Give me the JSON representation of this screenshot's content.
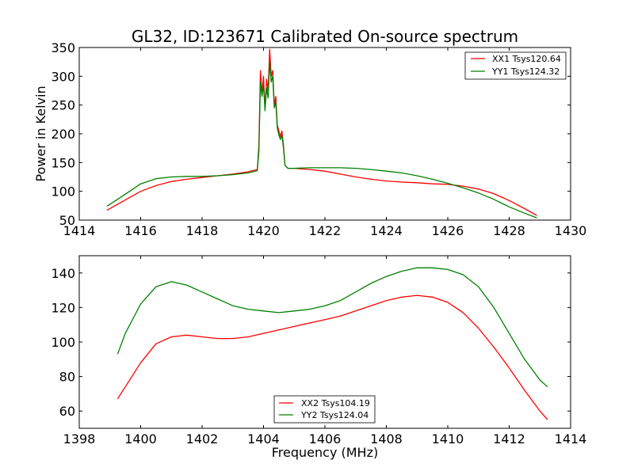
{
  "colors": {
    "red": "#ff0000",
    "green": "#008000",
    "axes": "#000000",
    "background": "#ffffff"
  },
  "chart_data": [
    {
      "type": "line",
      "title": "GL32, ID:123671 Calibrated On-source spectrum",
      "xlabel": "",
      "ylabel": "Power in Kelvin",
      "xlim": [
        1414,
        1430
      ],
      "ylim": [
        50,
        350
      ],
      "xticks": [
        "1414",
        "1416",
        "1418",
        "1420",
        "1422",
        "1424",
        "1426",
        "1428",
        "1430"
      ],
      "yticks": [
        "50",
        "100",
        "150",
        "200",
        "250",
        "300",
        "350"
      ],
      "legend_position": "top-right",
      "series": [
        {
          "name": "XX1 Tsys120.64",
          "color": "#ff0000",
          "x": [
            1414.9,
            1415.5,
            1416,
            1416.5,
            1417,
            1417.5,
            1418,
            1418.5,
            1419,
            1419.5,
            1419.8,
            1419.85,
            1419.9,
            1419.95,
            1420.0,
            1420.05,
            1420.1,
            1420.15,
            1420.2,
            1420.25,
            1420.3,
            1420.35,
            1420.4,
            1420.45,
            1420.5,
            1420.55,
            1420.6,
            1420.65,
            1420.7,
            1420.8,
            1421,
            1421.5,
            1422,
            1422.5,
            1423,
            1423.5,
            1424,
            1424.5,
            1425,
            1425.5,
            1426,
            1426.5,
            1427,
            1427.5,
            1428,
            1428.5,
            1428.9
          ],
          "values": [
            67,
            85,
            100,
            110,
            117,
            121,
            124,
            127,
            130,
            134,
            138,
            180,
            310,
            270,
            300,
            245,
            295,
            275,
            347,
            300,
            310,
            250,
            265,
            215,
            205,
            195,
            205,
            180,
            145,
            140,
            140,
            138,
            135,
            130,
            125,
            121,
            118,
            116,
            115,
            113,
            112,
            109,
            104,
            96,
            84,
            70,
            58
          ]
        },
        {
          "name": "YY1 Tsys124.32",
          "color": "#008000",
          "x": [
            1414.9,
            1415.5,
            1416,
            1416.5,
            1417,
            1417.5,
            1418,
            1418.5,
            1419,
            1419.5,
            1419.8,
            1419.85,
            1419.9,
            1419.95,
            1420.0,
            1420.05,
            1420.1,
            1420.15,
            1420.2,
            1420.25,
            1420.3,
            1420.35,
            1420.4,
            1420.45,
            1420.5,
            1420.55,
            1420.6,
            1420.65,
            1420.7,
            1420.8,
            1421,
            1421.5,
            1422,
            1422.5,
            1423,
            1423.5,
            1424,
            1424.5,
            1425,
            1425.5,
            1426,
            1426.5,
            1427,
            1427.5,
            1428,
            1428.5,
            1428.9
          ],
          "values": [
            74,
            95,
            113,
            122,
            125,
            126,
            126,
            127,
            129,
            132,
            136,
            170,
            290,
            265,
            285,
            240,
            280,
            262,
            325,
            290,
            300,
            245,
            255,
            210,
            198,
            190,
            198,
            175,
            145,
            140,
            140,
            141,
            141,
            141,
            140,
            138,
            135,
            132,
            127,
            121,
            114,
            106,
            97,
            86,
            73,
            62,
            54
          ]
        }
      ]
    },
    {
      "type": "line",
      "title": "",
      "xlabel": "Frequency (MHz)",
      "ylabel": "",
      "xlim": [
        1398,
        1414
      ],
      "ylim": [
        50,
        150
      ],
      "xticks": [
        "1398",
        "1400",
        "1402",
        "1404",
        "1406",
        "1408",
        "1410",
        "1412",
        "1414"
      ],
      "yticks": [
        "60",
        "80",
        "100",
        "120",
        "140"
      ],
      "legend_position": "bottom-center",
      "series": [
        {
          "name": "XX2 Tsys104.19",
          "color": "#ff0000",
          "x": [
            1399.25,
            1399.5,
            1400,
            1400.5,
            1401,
            1401.5,
            1402,
            1402.5,
            1403,
            1403.5,
            1404,
            1404.5,
            1405,
            1405.5,
            1406,
            1406.5,
            1407,
            1407.5,
            1408,
            1408.5,
            1409,
            1409.5,
            1410,
            1410.5,
            1411,
            1411.5,
            1412,
            1412.5,
            1413,
            1413.25
          ],
          "values": [
            67,
            74,
            88,
            99,
            103,
            104,
            103,
            102,
            102,
            103,
            105,
            107,
            109,
            111,
            113,
            115,
            118,
            121,
            124,
            126,
            127,
            126,
            123,
            117,
            108,
            97,
            85,
            72,
            60,
            55
          ]
        },
        {
          "name": "YY2 Tsys124.04",
          "color": "#008000",
          "x": [
            1399.25,
            1399.5,
            1400,
            1400.5,
            1401,
            1401.5,
            1402,
            1402.5,
            1403,
            1403.5,
            1404,
            1404.5,
            1405,
            1405.5,
            1406,
            1406.5,
            1407,
            1407.5,
            1408,
            1408.5,
            1409,
            1409.5,
            1410,
            1410.5,
            1411,
            1411.5,
            1412,
            1412.5,
            1413,
            1413.25
          ],
          "values": [
            93,
            105,
            122,
            132,
            135,
            133,
            129,
            125,
            121,
            119,
            118,
            117,
            118,
            119,
            121,
            124,
            129,
            134,
            138,
            141,
            143,
            143,
            142,
            139,
            132,
            120,
            105,
            90,
            78,
            74
          ]
        }
      ]
    }
  ]
}
